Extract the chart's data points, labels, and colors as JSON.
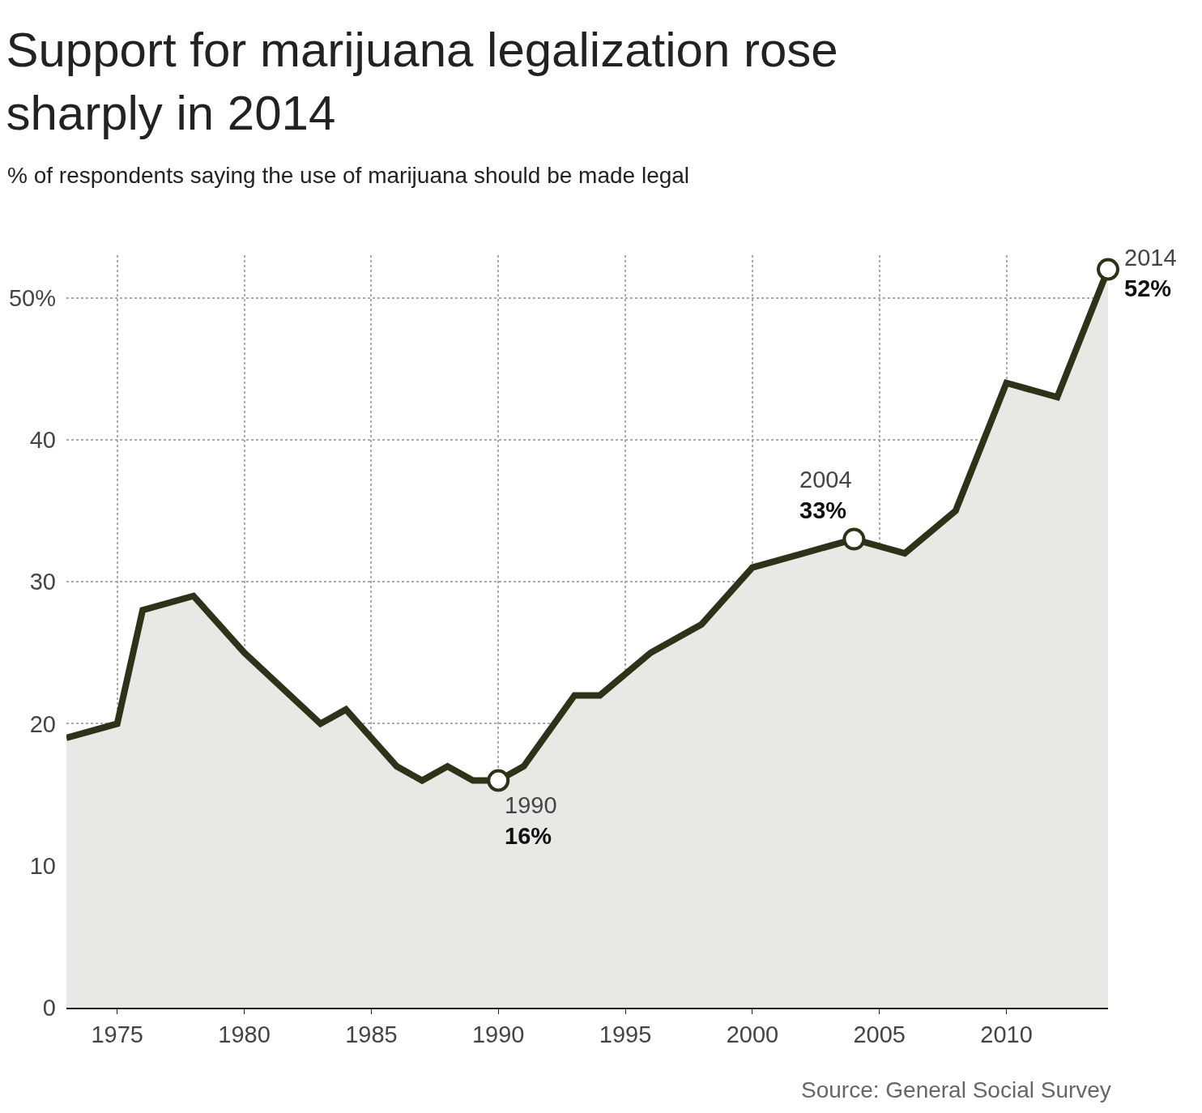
{
  "chart_data": {
    "type": "area",
    "title": "Support for marijuana legalization rose sharply in 2014",
    "subtitle": "% of respondents saying the use of marijuana should be made legal",
    "x": [
      1973,
      1975,
      1976,
      1978,
      1980,
      1983,
      1984,
      1986,
      1987,
      1988,
      1989,
      1990,
      1991,
      1993,
      1994,
      1996,
      1998,
      2000,
      2002,
      2004,
      2006,
      2008,
      2010,
      2012,
      2014
    ],
    "series": [
      {
        "color": "#2d3319",
        "values": [
          19,
          20,
          28,
          29,
          25,
          20,
          21,
          17,
          16,
          17,
          16,
          16,
          17,
          22,
          22,
          25,
          27,
          31,
          32,
          33,
          32,
          35,
          44,
          43,
          52
        ]
      }
    ],
    "xlim": [
      1973,
      2014
    ],
    "xticks": [
      1975,
      1980,
      1985,
      1990,
      1995,
      2000,
      2005,
      2010
    ],
    "ylim": [
      0,
      53
    ],
    "yticks": [
      0,
      10,
      20,
      30,
      40,
      {
        "value": 50,
        "label": "50%"
      }
    ],
    "grid": true,
    "annotations": [
      {
        "text": "1990\n16%",
        "x": 1990,
        "y": 16
      },
      {
        "text": "2004\n33%",
        "x": 2004,
        "y": 33
      },
      {
        "text": "2014\n52%",
        "x": 2014,
        "y": 52
      },
      "Source: General Social Survey"
    ]
  }
}
